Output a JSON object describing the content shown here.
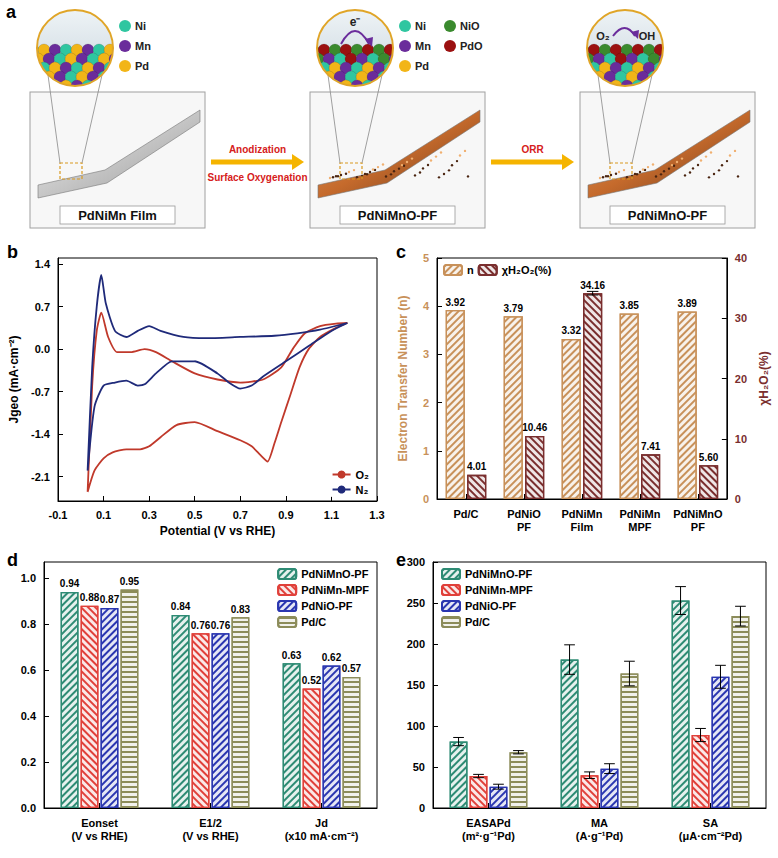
{
  "diagram": {
    "panel_label": "a",
    "stages": [
      {
        "label": "PdNiMn Film",
        "legend": [
          {
            "name": "Ni",
            "color": "#2fc6a0"
          },
          {
            "name": "Mn",
            "color": "#6a2c9b"
          },
          {
            "name": "Pd",
            "color": "#f2b517"
          }
        ]
      },
      {
        "label": "PdNiMnO-PF",
        "legend": [
          {
            "name": "Ni",
            "color": "#2fc6a0"
          },
          {
            "name": "Mn",
            "color": "#6a2c9b"
          },
          {
            "name": "Pd",
            "color": "#f2b517"
          },
          {
            "name": "NiO",
            "color": "#3a8a2e"
          },
          {
            "name": "PdO",
            "color": "#9b1010"
          }
        ],
        "inset_text": [
          "e⁻"
        ]
      },
      {
        "label": "PdNiMnO-PF",
        "inset_text": [
          "O₂",
          "OH"
        ]
      }
    ],
    "arrows": [
      {
        "above": "Anodization",
        "below": "Surface Oxygenation"
      },
      {
        "above": "ORR"
      }
    ]
  },
  "chart_data": [
    {
      "panel_label": "b",
      "type": "line",
      "x_label": "Potential (V vs RHE)",
      "y_label": "Jgeo (mA·cm⁻²)",
      "xlim": [
        -0.1,
        1.3
      ],
      "xticks": [
        -0.1,
        0.1,
        0.3,
        0.5,
        0.7,
        0.9,
        1.1,
        1.3
      ],
      "ylim": [
        -2.5,
        1.5
      ],
      "yticks": [
        -2.1,
        -1.4,
        -0.7,
        {
          "value": 0,
          "label": "0.0"
        },
        0.7,
        1.4
      ],
      "grid": false,
      "legend": "lower right",
      "series": [
        {
          "name": "O₂",
          "color": "#c0392b",
          "x": [
            0.03,
            0.05,
            0.07,
            0.09,
            0.12,
            0.16,
            0.22,
            0.28,
            0.33,
            0.4,
            0.5,
            0.6,
            0.7,
            0.8,
            0.88,
            0.93,
            0.98,
            1.05,
            1.12,
            1.17,
            1.12,
            1.05,
            1.0,
            0.96,
            0.92,
            0.88,
            0.85,
            0.82,
            0.79,
            0.75,
            0.7,
            0.6,
            0.5,
            0.42,
            0.35,
            0.3,
            0.26,
            0.2,
            0.14,
            0.1,
            0.06,
            0.03
          ],
          "values": [
            -2.35,
            -0.6,
            0.3,
            0.6,
            0.2,
            -0.05,
            -0.05,
            0.0,
            -0.05,
            -0.2,
            -0.4,
            -0.5,
            -0.55,
            -0.5,
            -0.3,
            0.0,
            0.25,
            0.38,
            0.42,
            0.43,
            0.35,
            0.2,
            0.0,
            -0.3,
            -0.75,
            -1.2,
            -1.55,
            -1.85,
            -1.75,
            -1.6,
            -1.5,
            -1.35,
            -1.2,
            -1.25,
            -1.45,
            -1.6,
            -1.65,
            -1.65,
            -1.7,
            -1.8,
            -2.0,
            -2.35
          ]
        },
        {
          "name": "N₂",
          "color": "#1f2a7a",
          "x": [
            0.03,
            0.05,
            0.07,
            0.09,
            0.11,
            0.15,
            0.2,
            0.25,
            0.3,
            0.35,
            0.45,
            0.55,
            0.7,
            0.85,
            0.95,
            1.05,
            1.17,
            1.1,
            1.0,
            0.9,
            0.8,
            0.75,
            0.7,
            0.65,
            0.6,
            0.5,
            0.4,
            0.33,
            0.28,
            0.25,
            0.2,
            0.15,
            0.1,
            0.06,
            0.03
          ],
          "values": [
            -2.0,
            -0.3,
            0.7,
            1.22,
            0.75,
            0.3,
            0.2,
            0.3,
            0.38,
            0.3,
            0.2,
            0.18,
            0.2,
            0.22,
            0.26,
            0.32,
            0.43,
            0.3,
            0.05,
            -0.2,
            -0.45,
            -0.6,
            -0.65,
            -0.55,
            -0.4,
            -0.2,
            -0.2,
            -0.4,
            -0.58,
            -0.6,
            -0.52,
            -0.55,
            -0.6,
            -0.95,
            -2.0
          ]
        }
      ]
    },
    {
      "panel_label": "c",
      "type": "bar",
      "categories": [
        "Pd/C",
        "PdNiO PF",
        "PdNiMn Film",
        "PdNiMn MPF",
        "PdNiMnO PF"
      ],
      "y_label": "Electron Transfer Number (n)",
      "y2_label": "χH₂O₂(%)",
      "ylim": [
        0,
        5
      ],
      "yticks": [
        0,
        1,
        2,
        3,
        4,
        5
      ],
      "y2lim": [
        0,
        40
      ],
      "y2ticks": [
        0,
        10,
        20,
        30,
        40
      ],
      "grid": false,
      "legend": "upper left",
      "data_labels": true,
      "series": [
        {
          "name": "n",
          "color": "#c8915a",
          "values": [
            3.92,
            3.79,
            3.32,
            3.85,
            3.89
          ]
        },
        {
          "name": "χH₂O₂(%)",
          "color": "#7a2e2e",
          "axis": "y2",
          "values": [
            4.01,
            10.46,
            34.16,
            7.41,
            5.6
          ],
          "value_labels": [
            "4.01",
            "10.46",
            "34.16",
            "7.41",
            "5.60"
          ],
          "errors": [
            null,
            null,
            0.3,
            null,
            null
          ]
        }
      ]
    },
    {
      "panel_label": "d",
      "type": "bar",
      "categories": [
        "Eonset (V vs RHE)",
        "E1/2 (V vs RHE)",
        "Jd (x10 mA·cm⁻²)"
      ],
      "ylim": [
        0,
        1.07
      ],
      "yticks": [
        {
          "value": 0,
          "label": "0.0"
        },
        0.2,
        0.4,
        0.6,
        0.8,
        {
          "value": 1,
          "label": "1.0"
        }
      ],
      "grid": false,
      "legend": "upper right",
      "data_labels": true,
      "series": [
        {
          "name": "PdNiMnO-PF",
          "color": "#2e8b74",
          "values": [
            0.94,
            0.84,
            0.63
          ]
        },
        {
          "name": "PdNiMn-MPF",
          "color": "#e0403a",
          "values": [
            0.88,
            0.76,
            0.52
          ]
        },
        {
          "name": "PdNiO-PF",
          "color": "#2a36b0",
          "values": [
            0.87,
            0.76,
            0.62
          ]
        },
        {
          "name": "Pd/C",
          "color": "#8c8c5a",
          "values": [
            0.95,
            0.83,
            0.57
          ]
        }
      ]
    },
    {
      "panel_label": "e",
      "type": "bar",
      "categories": [
        "EASAPd (m²·g⁻¹Pd)",
        "MA (A·g⁻¹Pd)",
        "SA (μA·cm⁻²Pd)"
      ],
      "ylim": [
        0,
        300
      ],
      "yticks": [
        0,
        50,
        100,
        150,
        200,
        250,
        300
      ],
      "grid": false,
      "legend": "upper left",
      "data_labels": false,
      "series": [
        {
          "name": "PdNiMnO-PF",
          "color": "#2e8b74",
          "values": [
            81,
            181,
            253
          ],
          "errors": [
            5,
            18,
            17
          ]
        },
        {
          "name": "PdNiMn-MPF",
          "color": "#e0403a",
          "values": [
            39,
            40,
            89
          ],
          "errors": [
            2,
            4,
            8
          ]
        },
        {
          "name": "PdNiO-PF",
          "color": "#2a36b0",
          "values": [
            26,
            48,
            160
          ],
          "errors": [
            3,
            6,
            14
          ]
        },
        {
          "name": "Pd/C",
          "color": "#8c8c5a",
          "values": [
            68,
            164,
            234
          ],
          "errors": [
            2,
            15,
            12
          ]
        }
      ]
    }
  ]
}
